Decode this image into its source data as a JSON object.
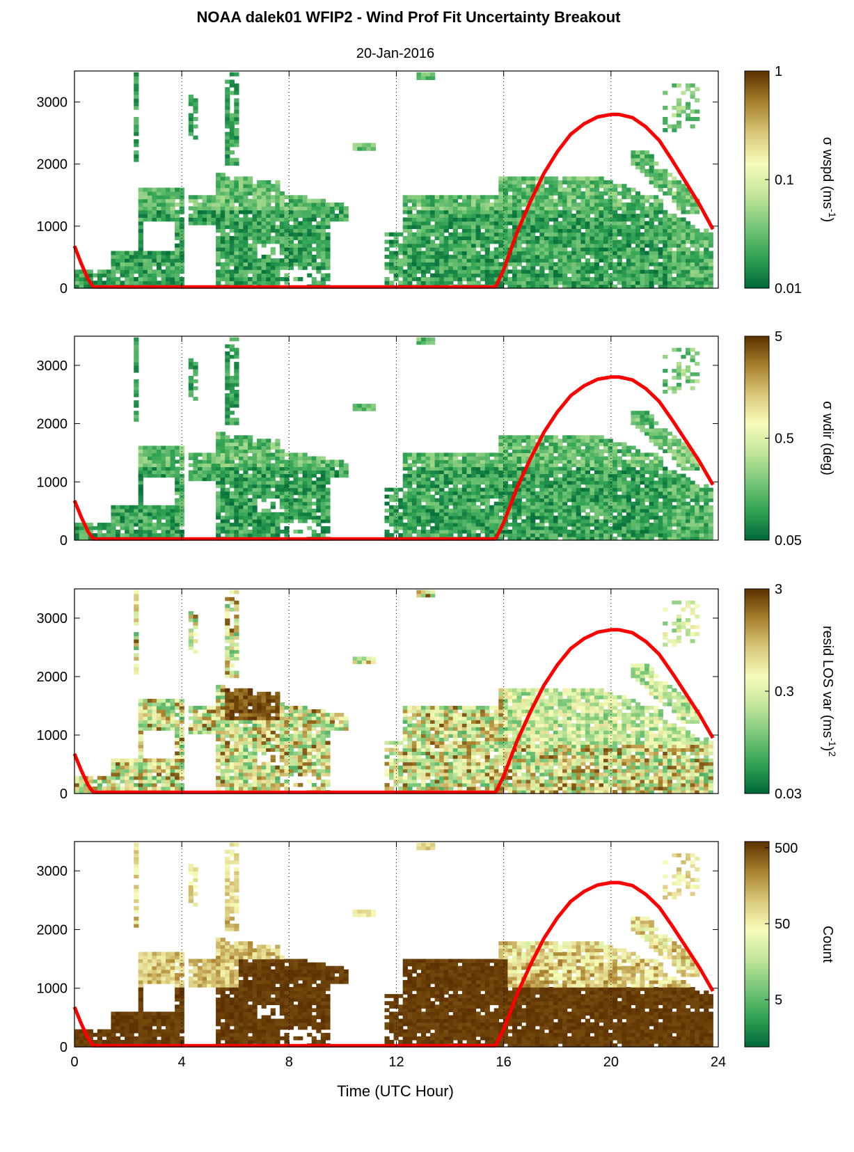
{
  "chart_data": {
    "type": "heatmap",
    "title": "NOAA dalek01 WFIP2 - Wind Prof Fit Uncertainty Breakout",
    "subtitle": "20-Jan-2016",
    "xlabel": "Time (UTC Hour)",
    "xlim": [
      0,
      24
    ],
    "x_ticks": [
      "0",
      "4",
      "8",
      "12",
      "16",
      "20",
      "24"
    ],
    "x_tick_values": [
      0,
      4,
      8,
      12,
      16,
      20,
      24
    ],
    "ylim": [
      0,
      3500
    ],
    "y_ticks": [
      "0",
      "1000",
      "2000",
      "3000"
    ],
    "y_tick_values": [
      0,
      1000,
      2000,
      3000
    ],
    "grid": "vertical dotted lines every 4 hours",
    "red_curve": {
      "description": "boundary layer height overlay",
      "color": "#ff0000",
      "points": [
        [
          0,
          680
        ],
        [
          0.25,
          400
        ],
        [
          0.5,
          150
        ],
        [
          0.7,
          20
        ],
        [
          15.7,
          20
        ],
        [
          16,
          300
        ],
        [
          16.5,
          900
        ],
        [
          17,
          1400
        ],
        [
          17.5,
          1850
        ],
        [
          18,
          2200
        ],
        [
          18.5,
          2480
        ],
        [
          19,
          2650
        ],
        [
          19.5,
          2760
        ],
        [
          20,
          2800
        ],
        [
          20.3,
          2800
        ],
        [
          20.8,
          2750
        ],
        [
          21.3,
          2600
        ],
        [
          21.8,
          2380
        ],
        [
          22.3,
          2050
        ],
        [
          22.8,
          1700
        ],
        [
          23.3,
          1350
        ],
        [
          23.8,
          950
        ]
      ]
    },
    "panels": [
      {
        "colorbar_label": "σ wspd (ms",
        "colorbar_sup": "-1",
        "colorbar_suffix": ")",
        "colorbar_ticks": [
          "1",
          "0.1",
          "0.01"
        ],
        "colorbar_tick_fracs": [
          1.0,
          0.5,
          0.0
        ],
        "scale": "log",
        "dominant": "green"
      },
      {
        "colorbar_label": "σ wdir (deg)",
        "colorbar_sup": "",
        "colorbar_suffix": "",
        "colorbar_ticks": [
          "5",
          "0.5",
          "0.05"
        ],
        "colorbar_tick_fracs": [
          1.0,
          0.5,
          0.0
        ],
        "scale": "log",
        "dominant": "green"
      },
      {
        "colorbar_label": "resid LOS var (ms",
        "colorbar_sup": "-1",
        "colorbar_suffix": ")",
        "colorbar_sup2": "2",
        "colorbar_ticks": [
          "3",
          "0.3",
          "0.03"
        ],
        "colorbar_tick_fracs": [
          1.0,
          0.5,
          0.0
        ],
        "scale": "log",
        "dominant": "mixed"
      },
      {
        "colorbar_label": "Count",
        "colorbar_sup": "",
        "colorbar_suffix": "",
        "colorbar_ticks": [
          "500",
          "50",
          "5"
        ],
        "colorbar_tick_fracs": [
          0.97,
          0.6,
          0.23
        ],
        "scale": "log",
        "dominant": "brown"
      }
    ],
    "colormap": [
      "#006837",
      "#31a354",
      "#78c679",
      "#c2e699",
      "#f7fcb9",
      "#d9c77a",
      "#a8802c",
      "#5c3000"
    ]
  }
}
